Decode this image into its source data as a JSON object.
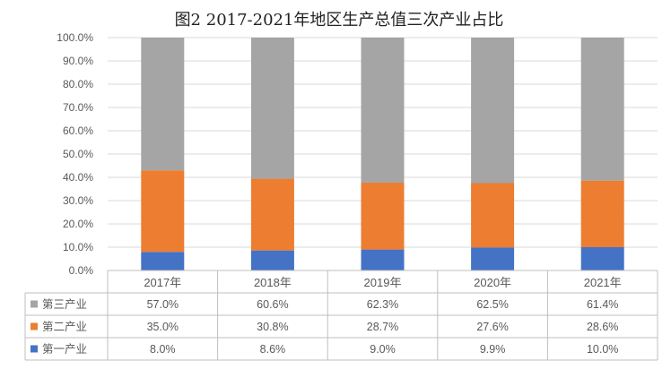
{
  "chart_data": {
    "type": "bar",
    "stacked": true,
    "title": "图2   2017-2021年地区生产总值三次产业占比",
    "categories": [
      "2017年",
      "2018年",
      "2019年",
      "2020年",
      "2021年"
    ],
    "ylim": [
      0,
      100
    ],
    "yticks": [
      "0.0%",
      "10.0%",
      "20.0%",
      "30.0%",
      "40.0%",
      "50.0%",
      "60.0%",
      "70.0%",
      "80.0%",
      "90.0%",
      "100.0%"
    ],
    "grid": true,
    "legend_placement": "data-table-left",
    "series": [
      {
        "name": "第一产业",
        "color": "#4472c4",
        "values": [
          8.0,
          8.6,
          9.0,
          9.9,
          10.0
        ],
        "labels": [
          "8.0%",
          "8.6%",
          "9.0%",
          "9.9%",
          "10.0%"
        ]
      },
      {
        "name": "第二产业",
        "color": "#ed7d31",
        "values": [
          35.0,
          30.8,
          28.7,
          27.6,
          28.6
        ],
        "labels": [
          "35.0%",
          "30.8%",
          "28.7%",
          "27.6%",
          "28.6%"
        ]
      },
      {
        "name": "第三产业",
        "color": "#a5a5a5",
        "values": [
          57.0,
          60.6,
          62.3,
          62.5,
          61.4
        ],
        "labels": [
          "57.0%",
          "60.6%",
          "62.3%",
          "62.5%",
          "61.4%"
        ]
      }
    ],
    "table_row_order": [
      "第三产业",
      "第二产业",
      "第一产业"
    ]
  }
}
